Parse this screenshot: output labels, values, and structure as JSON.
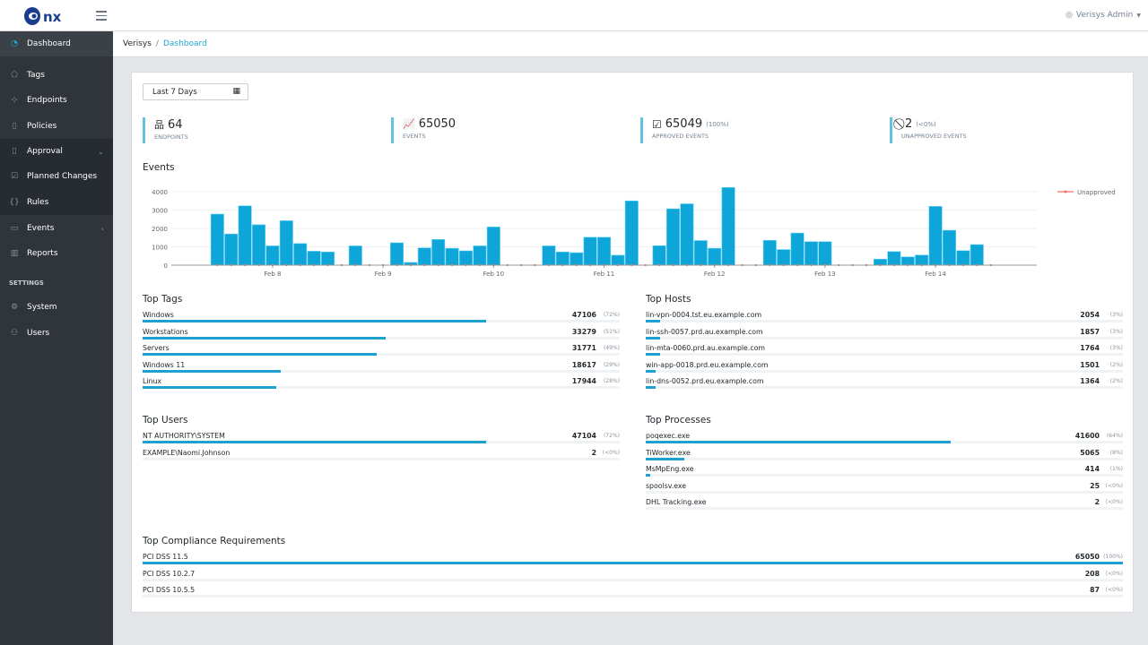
{
  "header": {
    "logo_text": "nx",
    "user": "Verisys Admin",
    "user_icon": "user-circle-icon"
  },
  "sidebar": {
    "items": [
      {
        "label": "Dashboard",
        "icon": "speedometer-icon",
        "active": true
      },
      {
        "label": "Tags",
        "icon": "tag-icon"
      },
      {
        "label": "Endpoints",
        "icon": "sitemap-icon"
      },
      {
        "label": "Policies",
        "icon": "clipboard-icon"
      },
      {
        "label": "Approval",
        "icon": "clipboard-check-icon",
        "expanded": true
      },
      {
        "label": "Planned Changes",
        "icon": "calendar-check-icon"
      },
      {
        "label": "Rules",
        "icon": "braces-icon"
      },
      {
        "label": "Events",
        "icon": "calendar-icon"
      },
      {
        "label": "Reports",
        "icon": "bar-chart-icon"
      },
      {
        "label": "System",
        "icon": "gear-icon"
      },
      {
        "label": "Users",
        "icon": "users-icon"
      }
    ],
    "settings_heading": "SETTINGS"
  },
  "breadcrumb": {
    "root": "Verisys",
    "current": "Dashboard"
  },
  "date_range": {
    "value": "Last 7 Days"
  },
  "kpis": [
    {
      "value": "64",
      "label": "ENDPOINTS",
      "pct": "",
      "icon": "sitemap-icon"
    },
    {
      "value": "65050",
      "label": "EVENTS",
      "pct": "",
      "icon": "area-chart-icon"
    },
    {
      "value": "65049",
      "label": "APPROVED EVENTS",
      "pct": "(100%)",
      "icon": "check-square-icon"
    },
    {
      "value": "2",
      "label": "UNAPPROVED EVENTS",
      "pct": "(<0%)",
      "icon": "ban-icon"
    }
  ],
  "colors": {
    "accent": "#20a8d8",
    "bar": "#0ea5d8",
    "unapproved": "#f86c6b",
    "sidebar": "#2f353a"
  },
  "chart_data": {
    "type": "bar",
    "title": "Events",
    "ylim": [
      0,
      4000
    ],
    "yticks": [
      0,
      1000,
      2000,
      3000,
      4000
    ],
    "xlim": [
      "Feb 7 02:00",
      "Feb 14 22:00"
    ],
    "xticks": [
      "Feb 8",
      "Feb 9",
      "Feb 10",
      "Feb 11",
      "Feb 12",
      "Feb 13",
      "Feb 14"
    ],
    "grid": true,
    "legend": "top-right",
    "x": [
      "Feb 7 12:00",
      "Feb 7 15:00",
      "Feb 7 18:00",
      "Feb 7 21:00",
      "Feb 8 00:00",
      "Feb 8 03:00",
      "Feb 8 06:00",
      "Feb 8 09:00",
      "Feb 8 12:00",
      "Feb 8 15:00",
      "Feb 8 18:00",
      "Feb 8 21:00",
      "Feb 9 00:00",
      "Feb 9 03:00",
      "Feb 9 06:00",
      "Feb 9 09:00",
      "Feb 9 12:00",
      "Feb 9 15:00",
      "Feb 9 18:00",
      "Feb 9 21:00",
      "Feb 10 00:00",
      "Feb 10 03:00",
      "Feb 10 06:00",
      "Feb 10 09:00",
      "Feb 10 12:00",
      "Feb 10 15:00",
      "Feb 10 18:00",
      "Feb 10 21:00",
      "Feb 11 00:00",
      "Feb 11 03:00",
      "Feb 11 06:00",
      "Feb 11 09:00",
      "Feb 11 12:00",
      "Feb 11 15:00",
      "Feb 11 18:00",
      "Feb 11 21:00",
      "Feb 12 00:00",
      "Feb 12 03:00",
      "Feb 12 06:00",
      "Feb 12 09:00",
      "Feb 12 12:00",
      "Feb 12 15:00",
      "Feb 12 18:00",
      "Feb 12 21:00",
      "Feb 13 00:00",
      "Feb 13 03:00",
      "Feb 13 06:00",
      "Feb 13 09:00",
      "Feb 13 12:00",
      "Feb 13 15:00",
      "Feb 13 18:00",
      "Feb 13 21:00",
      "Feb 14 00:00",
      "Feb 14 03:00",
      "Feb 14 06:00",
      "Feb 14 09:00",
      "Feb 14 12:00"
    ],
    "series": [
      {
        "name": "",
        "kind": "bar",
        "values": [
          2780,
          1700,
          3230,
          2200,
          1050,
          2420,
          1180,
          760,
          720,
          0,
          1050,
          0,
          0,
          1220,
          150,
          940,
          1400,
          920,
          780,
          1050,
          2080,
          0,
          0,
          0,
          1050,
          720,
          680,
          1520,
          1520,
          540,
          3500,
          0,
          1060,
          3070,
          3340,
          1340,
          920,
          4230,
          0,
          0,
          1350,
          850,
          1750,
          1280,
          1280,
          0,
          0,
          0,
          330,
          740,
          450,
          550,
          3200,
          1900,
          790,
          1120,
          0
        ]
      },
      {
        "name": "Unapproved",
        "kind": "line",
        "values": [
          0,
          0,
          0,
          0,
          0,
          0,
          0,
          0,
          0,
          0,
          0,
          0,
          0,
          0,
          0,
          0,
          0,
          0,
          0,
          0,
          0,
          0,
          0,
          0,
          0,
          0,
          0,
          0,
          0,
          0,
          0,
          0,
          0,
          0,
          0,
          0,
          0,
          0,
          0,
          0,
          0,
          0,
          0,
          0,
          0,
          0,
          0,
          0,
          0,
          0,
          0,
          0,
          0,
          0,
          0,
          0,
          0
        ]
      }
    ]
  },
  "top_tags": {
    "title": "Top Tags",
    "rows": [
      {
        "label": "Windows",
        "count": "47106",
        "pct": "(72%)",
        "fill": 72
      },
      {
        "label": "Workstations",
        "count": "33279",
        "pct": "(51%)",
        "fill": 51
      },
      {
        "label": "Servers",
        "count": "31771",
        "pct": "(49%)",
        "fill": 49
      },
      {
        "label": "Windows 11",
        "count": "18617",
        "pct": "(29%)",
        "fill": 29
      },
      {
        "label": "Linux",
        "count": "17944",
        "pct": "(28%)",
        "fill": 28
      }
    ]
  },
  "top_hosts": {
    "title": "Top Hosts",
    "rows": [
      {
        "label": "lin-vpn-0004.tst.eu.example.com",
        "count": "2054",
        "pct": "(3%)",
        "fill": 3
      },
      {
        "label": "lin-ssh-0057.prd.au.example.com",
        "count": "1857",
        "pct": "(3%)",
        "fill": 3
      },
      {
        "label": "lin-mta-0060.prd.au.example.com",
        "count": "1764",
        "pct": "(3%)",
        "fill": 3
      },
      {
        "label": "win-app-0018.prd.eu.example.com",
        "count": "1501",
        "pct": "(2%)",
        "fill": 2
      },
      {
        "label": "lin-dns-0052.prd.eu.example.com",
        "count": "1364",
        "pct": "(2%)",
        "fill": 2
      }
    ]
  },
  "top_users": {
    "title": "Top Users",
    "rows": [
      {
        "label": "NT AUTHORITY\\SYSTEM",
        "count": "47104",
        "pct": "(72%)",
        "fill": 72
      },
      {
        "label": "EXAMPLE\\Naomi.Johnson",
        "count": "2",
        "pct": "(<0%)",
        "fill": 0
      }
    ]
  },
  "top_processes": {
    "title": "Top Processes",
    "rows": [
      {
        "label": "poqexec.exe",
        "count": "41600",
        "pct": "(64%)",
        "fill": 64
      },
      {
        "label": "TiWorker.exe",
        "count": "5065",
        "pct": "(8%)",
        "fill": 8
      },
      {
        "label": "MsMpEng.exe",
        "count": "414",
        "pct": "(1%)",
        "fill": 1
      },
      {
        "label": "spoolsv.exe",
        "count": "25",
        "pct": "(<0%)",
        "fill": 0
      },
      {
        "label": "DHL Tracking.exe",
        "count": "2",
        "pct": "(<0%)",
        "fill": 0
      }
    ]
  },
  "top_compliance": {
    "title": "Top Compliance Requirements",
    "rows": [
      {
        "label": "PCI DSS 11.5",
        "count": "65050",
        "pct": "(100%)",
        "fill": 100
      },
      {
        "label": "PCI DSS 10.2.7",
        "count": "208",
        "pct": "(<0%)",
        "fill": 0
      },
      {
        "label": "PCI DSS 10.5.5",
        "count": "87",
        "pct": "(<0%)",
        "fill": 0
      }
    ]
  }
}
